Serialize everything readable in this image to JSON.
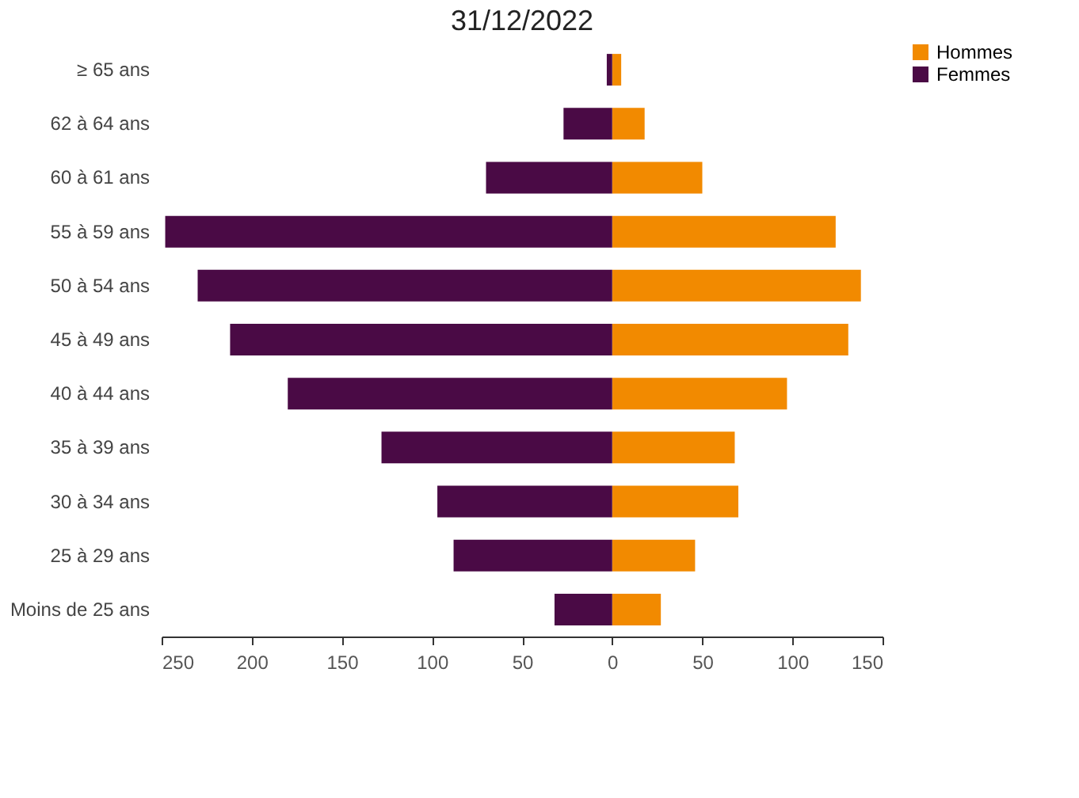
{
  "chart_data": {
    "type": "bar",
    "orientation": "horizontal",
    "title": "31/12/2022",
    "categories": [
      "≥ 65 ans",
      "62 à 64 ans",
      "60 à 61 ans",
      "55 à 59 ans",
      "50 à 54 ans",
      "45 à 49 ans",
      "40 à 44 ans",
      "35 à 39 ans",
      "30 à 34 ans",
      "25 à 29 ans",
      "Moins de 25 ans"
    ],
    "series": [
      {
        "name": "Hommes",
        "color": "#f28a00",
        "values": [
          5,
          18,
          50,
          124,
          138,
          131,
          97,
          68,
          70,
          46,
          27
        ]
      },
      {
        "name": "Femmes",
        "color": "#4a0a45",
        "values": [
          -3,
          -27,
          -70,
          -248,
          -230,
          -212,
          -180,
          -128,
          -97,
          -88,
          -32
        ]
      }
    ],
    "xlim": [
      -250,
      150
    ],
    "xticks": [
      {
        "value": -250,
        "label": "250"
      },
      {
        "value": -200,
        "label": "200"
      },
      {
        "value": -150,
        "label": "150"
      },
      {
        "value": -100,
        "label": "100"
      },
      {
        "value": -50,
        "label": "50"
      },
      0,
      50,
      100,
      150
    ],
    "stacked": true,
    "grid": false,
    "legend": "right"
  }
}
